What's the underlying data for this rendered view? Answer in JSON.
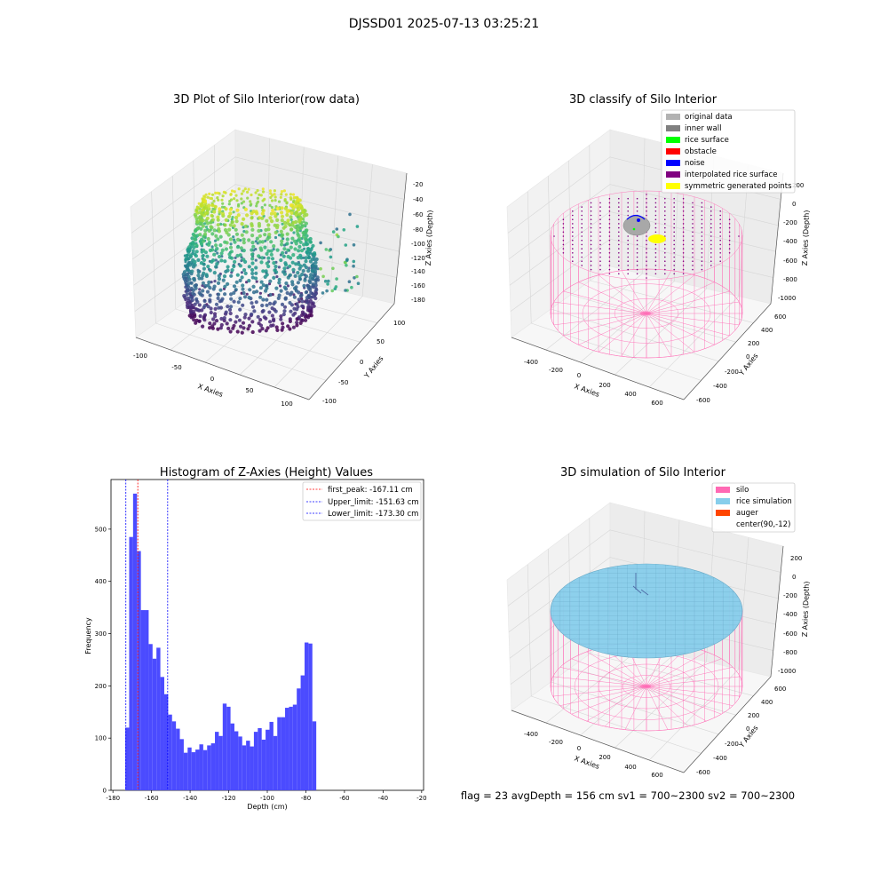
{
  "figure": {
    "suptitle": "DJSSD01 2025-07-13 03:25:21"
  },
  "chart_data": [
    {
      "type": "scatter",
      "title": "3D Plot of Silo Interior(row data)",
      "xlabel": "X Axies",
      "ylabel": "Y Axies",
      "zlabel": "Z Axies (Depth)",
      "xticks": [
        "-100",
        "-50",
        "0",
        "50",
        "100"
      ],
      "yticks": [
        "-100",
        "-50",
        "0",
        "50",
        "100"
      ],
      "zticks": [
        "-20",
        "-40",
        "-60",
        "-80",
        "-100",
        "-120",
        "-140",
        "-160",
        "-180"
      ],
      "xlim": [
        -100,
        100
      ],
      "ylim": [
        -100,
        100
      ],
      "zlim": [
        -180,
        -20
      ],
      "colormap": "viridis"
    },
    {
      "type": "scatter",
      "title": "3D classify of Silo Interior",
      "xlabel": "X Axies",
      "ylabel": "Y Axies",
      "zlabel": "Z Axies (Depth)",
      "xticks": [
        "-400",
        "-200",
        "0",
        "200",
        "400",
        "600"
      ],
      "yticks": [
        "-600",
        "-400",
        "-200",
        "0",
        "200",
        "400",
        "600"
      ],
      "zticks": [
        "200",
        "0",
        "-200",
        "-400",
        "-600",
        "-800",
        "-1000"
      ],
      "legend_position": "top-right",
      "legend": [
        {
          "label": "original data",
          "color": "#b2b2b2"
        },
        {
          "label": "inner wall",
          "color": "#808080"
        },
        {
          "label": "rice surface",
          "color": "#00ff00"
        },
        {
          "label": "obstacle",
          "color": "#ff0000"
        },
        {
          "label": "noise",
          "color": "#0000ff"
        },
        {
          "label": "interpolated rice surface",
          "color": "#800080"
        },
        {
          "label": "symmetric generated points",
          "color": "#ffff00"
        }
      ]
    },
    {
      "type": "bar",
      "title": "Histogram of Z-Axies (Height) Values",
      "xlabel": "Depth (cm)",
      "ylabel": "Frequency",
      "xlim": [
        -181,
        -19
      ],
      "ylim": [
        0,
        595
      ],
      "xticks": [
        -180,
        -160,
        -140,
        -120,
        -100,
        -80,
        -60,
        -40,
        -20
      ],
      "yticks": [
        0,
        100,
        200,
        300,
        400,
        500
      ],
      "bar_color": "#4b4bff",
      "bin_start": -173.6,
      "bin_width": 2.02,
      "values": [
        120,
        485,
        568,
        458,
        345,
        345,
        280,
        252,
        273,
        217,
        184,
        145,
        132,
        118,
        98,
        72,
        82,
        73,
        78,
        88,
        77,
        86,
        90,
        112,
        104,
        166,
        160,
        128,
        113,
        103,
        86,
        95,
        84,
        112,
        119,
        97,
        116,
        131,
        104,
        140,
        140,
        158,
        160,
        164,
        195,
        220,
        283,
        281,
        132
      ],
      "vlines": [
        {
          "x": -167.11,
          "color": "#ff0000",
          "label": "first_peak: -167.11 cm"
        },
        {
          "x": -151.63,
          "color": "#0000ff",
          "label": "Upper_limit: -151.63 cm"
        },
        {
          "x": -173.3,
          "color": "#0000ff",
          "label": "Lower_limit: -173.30 cm"
        }
      ],
      "legend_position": "top-right"
    },
    {
      "type": "scatter",
      "title": "3D simulation of Silo Interior",
      "xlabel": "X Axies",
      "ylabel": "Y Axies",
      "zlabel": "Z Axies (Depth)",
      "xticks": [
        "-400",
        "-200",
        "0",
        "200",
        "400",
        "600"
      ],
      "yticks": [
        "-600",
        "-400",
        "-200",
        "0",
        "200",
        "400",
        "600"
      ],
      "zticks": [
        "200",
        "0",
        "-200",
        "-400",
        "-600",
        "-800",
        "-1000"
      ],
      "legend_position": "top-right",
      "legend": [
        {
          "label": "silo",
          "color": "#ff69b4"
        },
        {
          "label": "rice simulation",
          "color": "#87ceeb"
        },
        {
          "label": "auger",
          "color": "#ff4500"
        },
        {
          "label": "center(90,-12)",
          "color": "#ffffff"
        }
      ]
    }
  ],
  "footer_stats": "flag = 23   avgDepth = 156 cm   sv1 = 700~2300   sv2 = 700~2300"
}
